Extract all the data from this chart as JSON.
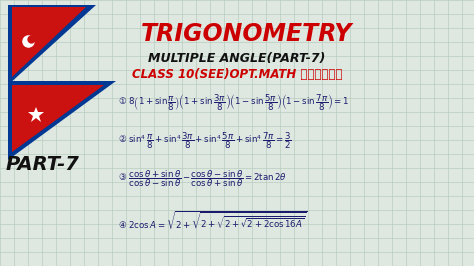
{
  "bg_color": "#dfe8e0",
  "title": "TRIGONOMETRY",
  "subtitle": "MULTIPLE ANGLE(PART-7)",
  "subtitle2": "CLASS 10(SEE)OPT.MATH नेपाली",
  "part_label": "PART-7",
  "title_color": "#cc0000",
  "subtitle_color": "#111111",
  "subtitle2_color": "#cc0000",
  "part_color": "#111111",
  "math_color": "#1a1a6e",
  "grid_color": "#b8ccc0",
  "flag_red": "#cc1111",
  "flag_blue": "#003893",
  "flag_white": "#ffffff",
  "figw": 4.74,
  "figh": 2.66,
  "dpi": 100
}
